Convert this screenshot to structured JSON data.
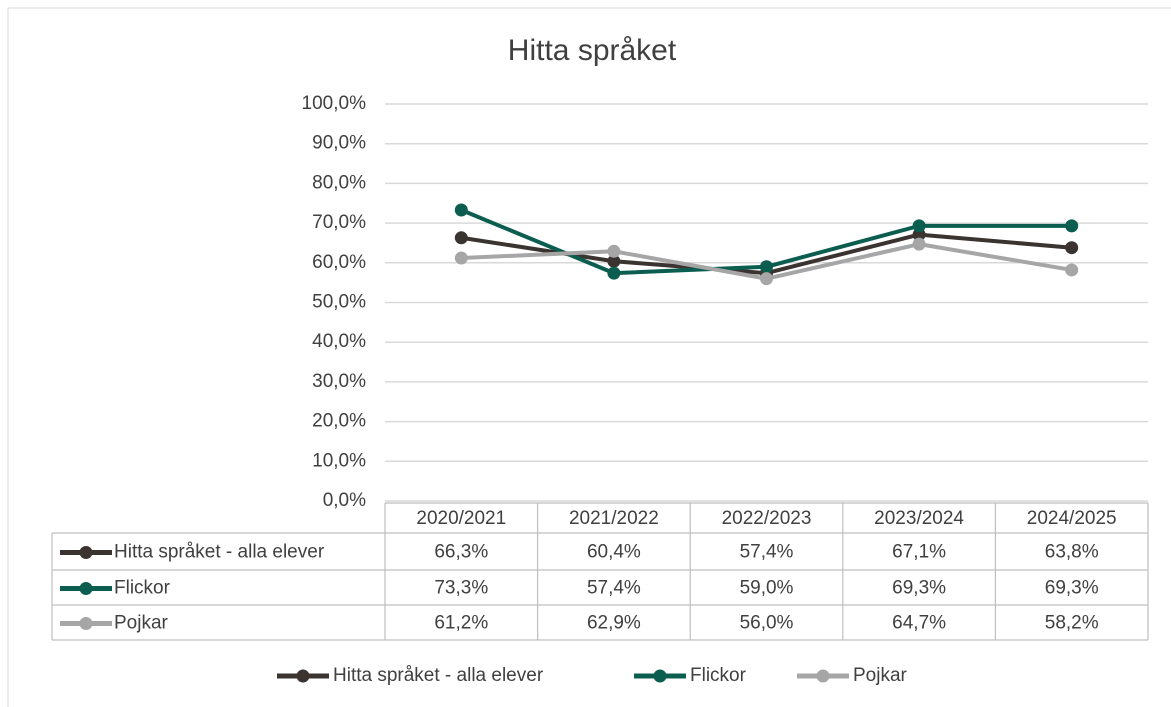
{
  "chart_data": {
    "type": "line",
    "title": "Hitta språket",
    "categories": [
      "2020/2021",
      "2021/2022",
      "2022/2023",
      "2023/2024",
      "2024/2025"
    ],
    "series": [
      {
        "name": "Hitta språket - alla elever",
        "color": "#3b3330",
        "values": [
          66.3,
          60.4,
          57.4,
          67.1,
          63.8
        ],
        "value_labels": [
          "66,3%",
          "60,4%",
          "57,4%",
          "67,1%",
          "63,8%"
        ]
      },
      {
        "name": "Flickor",
        "color": "#0b5e4f",
        "values": [
          73.3,
          57.4,
          59.0,
          69.3,
          69.3
        ],
        "value_labels": [
          "73,3%",
          "57,4%",
          "59,0%",
          "69,3%",
          "69,3%"
        ]
      },
      {
        "name": "Pojkar",
        "color": "#a6a6a6",
        "values": [
          61.2,
          62.9,
          56.0,
          64.7,
          58.2
        ],
        "value_labels": [
          "61,2%",
          "62,9%",
          "56,0%",
          "64,7%",
          "58,2%"
        ]
      }
    ],
    "ylim": [
      0,
      100
    ],
    "yticks": [
      {
        "value": 0,
        "label": "0,0%"
      },
      {
        "value": 10,
        "label": "10,0%"
      },
      {
        "value": 20,
        "label": "20,0%"
      },
      {
        "value": 30,
        "label": "30,0%"
      },
      {
        "value": 40,
        "label": "40,0%"
      },
      {
        "value": 50,
        "label": "50,0%"
      },
      {
        "value": 60,
        "label": "60,0%"
      },
      {
        "value": 70,
        "label": "70,0%"
      },
      {
        "value": 80,
        "label": "80,0%"
      },
      {
        "value": 90,
        "label": "90,0%"
      },
      {
        "value": 100,
        "label": "100,0%"
      }
    ],
    "grid": true,
    "legend": "bottom",
    "data_table": true
  }
}
